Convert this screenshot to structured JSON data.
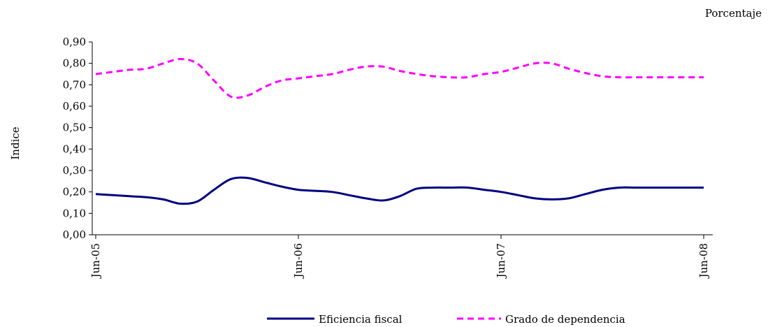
{
  "chart_data": {
    "type": "line",
    "title": "",
    "unit_note": "Porcentaje",
    "ylabel": "Indice",
    "xlabel": "",
    "ylim": [
      0,
      0.9
    ],
    "y_ticks": [
      "0,00",
      "0,10",
      "0,20",
      "0,30",
      "0,40",
      "0,50",
      "0,60",
      "0,70",
      "0,80",
      "0,90"
    ],
    "x_ticks": [
      "Jun-05",
      "Jun-06",
      "Jun-07",
      "Jun-08"
    ],
    "grid": false,
    "legend_position": "bottom",
    "x": [
      "2005-06",
      "2005-07",
      "2005-08",
      "2005-09",
      "2005-10",
      "2005-11",
      "2005-12",
      "2006-01",
      "2006-02",
      "2006-03",
      "2006-04",
      "2006-05",
      "2006-06",
      "2006-07",
      "2006-08",
      "2006-09",
      "2006-10",
      "2006-11",
      "2006-12",
      "2007-01",
      "2007-02",
      "2007-03",
      "2007-04",
      "2007-05",
      "2007-06",
      "2007-07",
      "2007-08",
      "2007-09",
      "2007-10",
      "2007-11",
      "2007-12",
      "2008-01",
      "2008-02",
      "2008-03",
      "2008-04",
      "2008-05",
      "2008-06"
    ],
    "series": [
      {
        "name": "Eficiencia fiscal",
        "color": "#000080",
        "style": "solid",
        "values": [
          0.19,
          0.185,
          0.18,
          0.175,
          0.165,
          0.145,
          0.155,
          0.21,
          0.26,
          0.265,
          0.245,
          0.225,
          0.21,
          0.205,
          0.2,
          0.185,
          0.17,
          0.16,
          0.18,
          0.215,
          0.22,
          0.22,
          0.22,
          0.21,
          0.2,
          0.185,
          0.17,
          0.165,
          0.17,
          0.19,
          0.21,
          0.22,
          0.22,
          0.22,
          0.22,
          0.22,
          0.22
        ]
      },
      {
        "name": "Grado de dependencia",
        "color": "#FF00FF",
        "style": "dashed",
        "values": [
          0.75,
          0.76,
          0.77,
          0.775,
          0.8,
          0.82,
          0.8,
          0.72,
          0.645,
          0.65,
          0.69,
          0.72,
          0.73,
          0.74,
          0.75,
          0.77,
          0.785,
          0.785,
          0.765,
          0.75,
          0.74,
          0.735,
          0.735,
          0.75,
          0.76,
          0.78,
          0.8,
          0.8,
          0.775,
          0.755,
          0.74,
          0.735,
          0.735,
          0.735,
          0.735,
          0.735,
          0.735
        ]
      }
    ]
  }
}
